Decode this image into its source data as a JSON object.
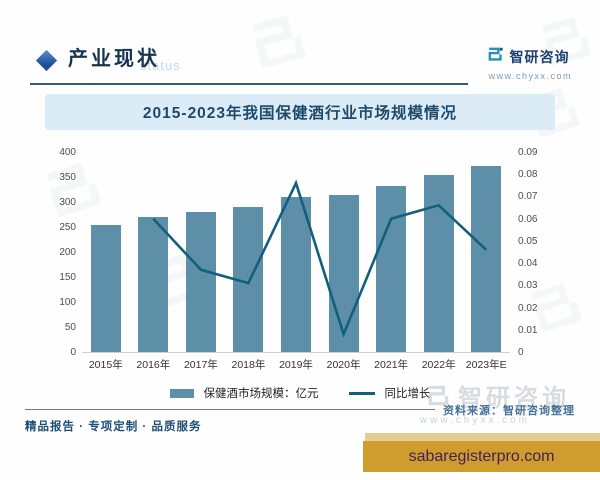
{
  "header": {
    "section_title": "产业现状",
    "ghost_text": "status",
    "brand_name": "智研咨询",
    "brand_website": "www.chyxx.com"
  },
  "chart_title": "2015-2023年我国保健酒行业市场规模情况",
  "chart_data": {
    "type": "bar",
    "subtype": "bar+line combo, dual axis",
    "categories": [
      "2015年",
      "2016年",
      "2017年",
      "2018年",
      "2019年",
      "2020年",
      "2021年",
      "2022年",
      "2023年E"
    ],
    "series": [
      {
        "name": "保健酒市场规模：亿元",
        "type": "bar",
        "axis": "left",
        "values": [
          255,
          271,
          281,
          290,
          311,
          314,
          333,
          355,
          372
        ]
      },
      {
        "name": "同比增长",
        "type": "line",
        "axis": "right",
        "values": [
          null,
          0.06,
          0.037,
          0.031,
          0.076,
          0.008,
          0.06,
          0.066,
          0.046
        ]
      }
    ],
    "left_axis": {
      "min": 0,
      "max": 400,
      "ticks": [
        "0",
        "50",
        "100",
        "150",
        "200",
        "250",
        "300",
        "350",
        "400"
      ]
    },
    "right_axis": {
      "min": 0,
      "max": 0.09,
      "ticks": [
        "0",
        "0.01",
        "0.02",
        "0.03",
        "0.04",
        "0.05",
        "0.06",
        "0.07",
        "0.08",
        "0.09"
      ]
    },
    "legend_position": "bottom",
    "grid": false
  },
  "footer": {
    "source_note": "资料来源：智研咨询整理",
    "tagline": "精品报告 · 专项定制 · 品质服务",
    "ghost_brand": "智研咨询",
    "ghost_site": "www.chyxx.com"
  },
  "banner": {
    "text": "sabaregisterpro.com"
  },
  "colors": {
    "bar": "#5d90a8",
    "line": "#135f7e",
    "title_banner_bg": "#dcecf6",
    "title_text": "#1d4a6b",
    "header_text": "#16334f",
    "brand_blue": "#1c3e70",
    "logo_teal": "#2593b4",
    "logo_navy": "#1c4e9c",
    "banner_gold": "#cf9c2e",
    "banner_text": "#45215a"
  }
}
